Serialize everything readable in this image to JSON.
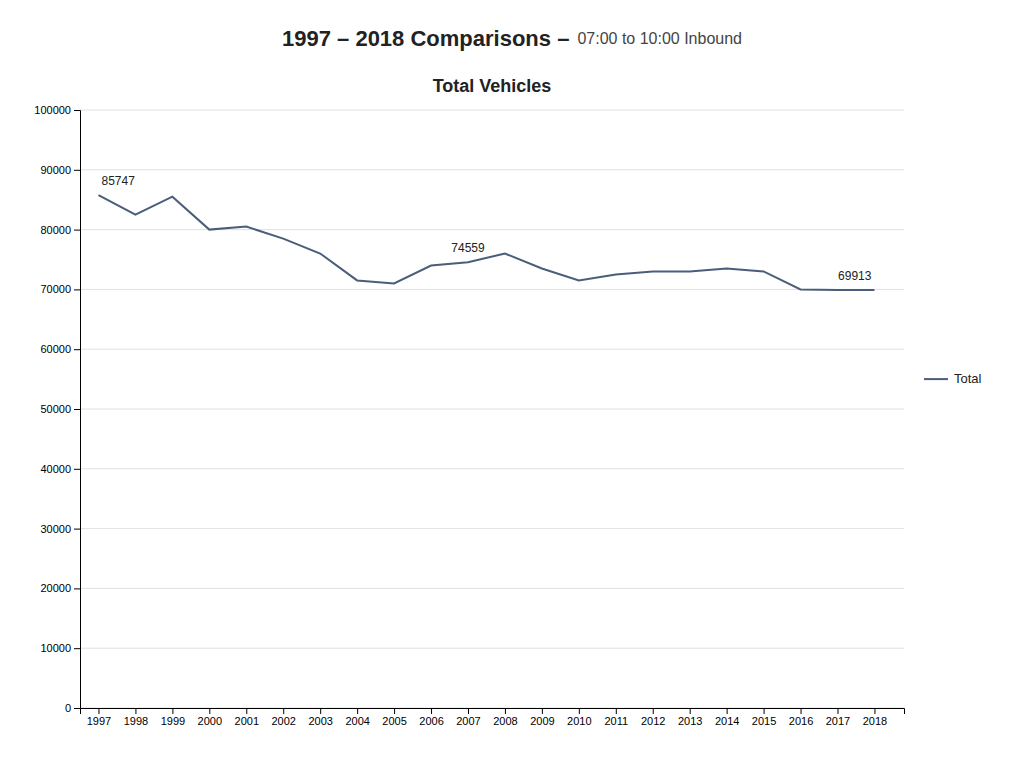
{
  "title": "1997 – 2018 Comparisons –",
  "subtitle": "07:00 to 10:00 Inbound",
  "chart_data": {
    "type": "line",
    "title": "Total Vehicles",
    "x": [
      1997,
      1998,
      1999,
      2000,
      2001,
      2002,
      2003,
      2004,
      2005,
      2006,
      2007,
      2008,
      2009,
      2010,
      2011,
      2012,
      2013,
      2014,
      2015,
      2016,
      2017,
      2018
    ],
    "series": [
      {
        "name": "Total",
        "color": "#4a5e7a",
        "values": [
          85747,
          82500,
          85500,
          80000,
          80500,
          78500,
          76000,
          71500,
          71000,
          74000,
          74559,
          76000,
          73500,
          71500,
          72500,
          73000,
          73000,
          73500,
          73000,
          70000,
          69913,
          69913
        ]
      }
    ],
    "xlim": [
      1996.5,
      2018.8
    ],
    "xticks": [
      1997,
      1998,
      1999,
      2000,
      2001,
      2002,
      2003,
      2004,
      2005,
      2006,
      2007,
      2008,
      2009,
      2010,
      2011,
      2012,
      2013,
      2014,
      2015,
      2016,
      2017,
      2018
    ],
    "ylim": [
      0,
      100000
    ],
    "yticks": [
      0,
      10000,
      20000,
      30000,
      40000,
      50000,
      60000,
      70000,
      80000,
      90000,
      100000
    ],
    "grid": true,
    "legend": "right",
    "annotations": [
      {
        "x": 1997,
        "y": 85747,
        "text": "85747"
      },
      {
        "x": 2007,
        "y": 74559,
        "text": "74559"
      },
      {
        "x": 2018,
        "y": 69913,
        "text": "69913"
      }
    ]
  }
}
